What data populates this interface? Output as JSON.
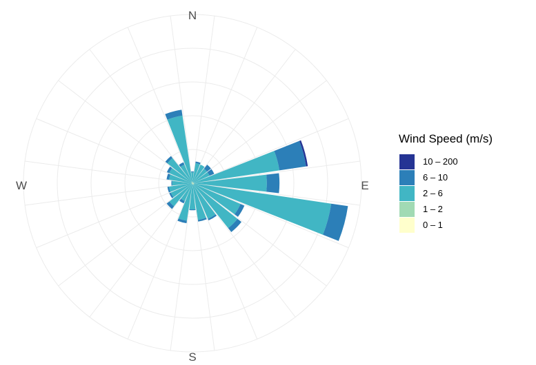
{
  "chart_data": {
    "type": "bar",
    "subtype": "wind-rose",
    "title": "",
    "legend": {
      "title": "Wind Speed (m/s)",
      "position": "right",
      "items": [
        {
          "label": "10 – 200",
          "color": "#253494"
        },
        {
          "label": "6 – 10",
          "color": "#2c7fb8"
        },
        {
          "label": "2 – 6",
          "color": "#41b6c4"
        },
        {
          "label": "1 – 2",
          "color": "#a1dab4"
        },
        {
          "label": "0 – 1",
          "color": "#ffffcc"
        }
      ]
    },
    "direction_labels": [
      "N",
      "E",
      "S",
      "W"
    ],
    "grid": true,
    "sector_width_deg": 15,
    "series_order": [
      "0 – 1",
      "1 – 2",
      "2 – 6",
      "6 – 10",
      "10 – 200"
    ],
    "sectors": [
      {
        "dir": 0,
        "values": [
          0.0,
          0.1,
          1.2,
          0.1,
          0.0
        ]
      },
      {
        "dir": 15,
        "values": [
          0.0,
          0.1,
          2.3,
          0.2,
          0.0
        ]
      },
      {
        "dir": 30,
        "values": [
          0.0,
          0.1,
          2.3,
          0.0,
          0.0
        ]
      },
      {
        "dir": 45,
        "values": [
          0.0,
          0.1,
          2.1,
          0.6,
          0.0
        ]
      },
      {
        "dir": 60,
        "values": [
          0.0,
          0.1,
          2.1,
          0.6,
          0.0
        ]
      },
      {
        "dir": 75,
        "values": [
          0.0,
          0.2,
          10.2,
          3.2,
          0.2
        ]
      },
      {
        "dir": 90,
        "values": [
          0.0,
          0.2,
          8.6,
          1.5,
          0.0
        ]
      },
      {
        "dir": 105,
        "values": [
          0.0,
          0.2,
          16.4,
          2.0,
          0.0
        ]
      },
      {
        "dir": 120,
        "values": [
          0.0,
          0.2,
          6.0,
          0.5,
          0.0
        ]
      },
      {
        "dir": 135,
        "values": [
          0.0,
          0.2,
          6.6,
          0.6,
          0.0
        ]
      },
      {
        "dir": 150,
        "values": [
          0.0,
          0.2,
          4.4,
          0.2,
          0.0
        ]
      },
      {
        "dir": 165,
        "values": [
          0.0,
          0.2,
          4.2,
          0.2,
          0.0
        ]
      },
      {
        "dir": 180,
        "values": [
          0.0,
          0.1,
          3.0,
          0.1,
          0.0
        ]
      },
      {
        "dir": 195,
        "values": [
          0.0,
          0.1,
          4.4,
          0.3,
          0.0
        ]
      },
      {
        "dir": 210,
        "values": [
          0.0,
          0.1,
          2.2,
          0.3,
          0.0
        ]
      },
      {
        "dir": 225,
        "values": [
          0.0,
          0.1,
          3.4,
          0.4,
          0.0
        ]
      },
      {
        "dir": 240,
        "values": [
          0.0,
          0.1,
          2.7,
          0.2,
          0.0
        ]
      },
      {
        "dir": 255,
        "values": [
          0.0,
          0.1,
          2.7,
          0.2,
          0.0
        ]
      },
      {
        "dir": 270,
        "values": [
          0.0,
          0.1,
          2.3,
          0.1,
          0.0
        ]
      },
      {
        "dir": 285,
        "values": [
          0.0,
          0.1,
          2.7,
          0.3,
          0.0
        ]
      },
      {
        "dir": 300,
        "values": [
          0.0,
          0.1,
          2.9,
          0.3,
          0.0
        ]
      },
      {
        "dir": 315,
        "values": [
          0.0,
          0.1,
          3.7,
          0.3,
          0.0
        ]
      },
      {
        "dir": 330,
        "values": [
          0.0,
          0.2,
          2.2,
          0.3,
          0.0
        ]
      },
      {
        "dir": 345,
        "values": [
          0.0,
          0.2,
          7.9,
          0.7,
          0.0
        ]
      }
    ],
    "radial_max": 20,
    "radial_rings": [
      4,
      8,
      12,
      16,
      20
    ]
  }
}
